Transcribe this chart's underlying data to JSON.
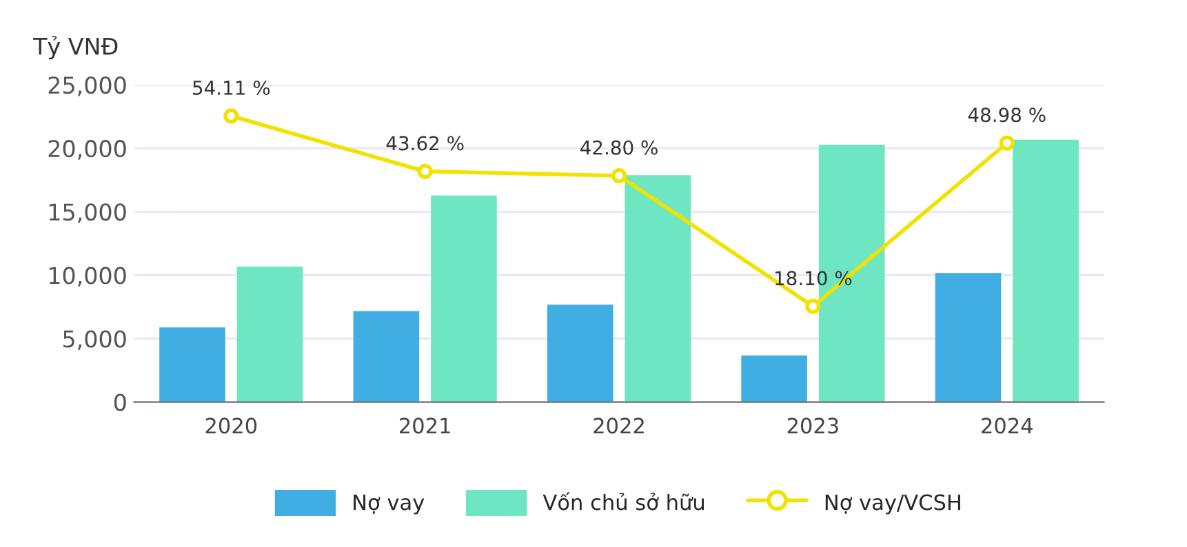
{
  "chart_data": {
    "type": "bar",
    "ylabel": "Tỷ VNĐ",
    "categories": [
      "2020",
      "2021",
      "2022",
      "2023",
      "2024"
    ],
    "series": [
      {
        "name": "Nợ vay",
        "color": "#41aee3",
        "values": [
          5800,
          7100,
          7600,
          3600,
          10100
        ]
      },
      {
        "name": "Vốn chủ sở hữu",
        "color": "#6ee6c1",
        "values": [
          10600,
          16200,
          17800,
          20200,
          20600
        ]
      },
      {
        "name": "Nợ vay/VCSH",
        "type": "line",
        "axis": "y2",
        "color": "#f2e200",
        "marker": "circle",
        "values": [
          54.11,
          43.62,
          42.8,
          18.1,
          48.98
        ],
        "value_labels": [
          "54.11 %",
          "43.62 %",
          "42.80 %",
          "18.10 %",
          "48.98 %"
        ]
      }
    ],
    "ylim": [
      0,
      25000
    ],
    "yticks": [
      {
        "value": 0,
        "label": "0"
      },
      {
        "value": 5000,
        "label": "5,000"
      },
      {
        "value": 10000,
        "label": "10,000"
      },
      {
        "value": 15000,
        "label": "15,000"
      },
      {
        "value": 20000,
        "label": "20,000"
      },
      {
        "value": 25000,
        "label": "25,000"
      }
    ],
    "y2lim": [
      0,
      60
    ],
    "grid": "y",
    "legend": "bottom"
  }
}
